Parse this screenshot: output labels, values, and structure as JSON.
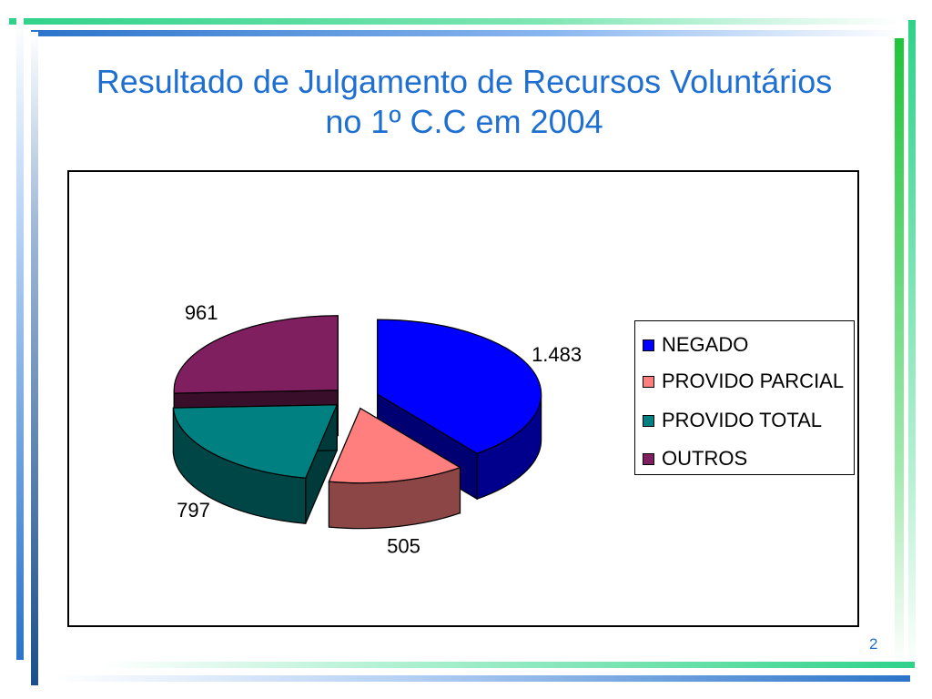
{
  "slide": {
    "title_line1": "Resultado de Julgamento de Recursos Voluntários",
    "title_line2": "no 1º C.C em 2004",
    "page_number": "2"
  },
  "chart_data": {
    "type": "pie",
    "style": "3d-exploded",
    "categories": [
      "NEGADO",
      "PROVIDO PARCIAL",
      "PROVIDO TOTAL",
      "OUTROS"
    ],
    "values": [
      1483,
      505,
      797,
      961
    ],
    "data_labels": [
      "1.483",
      "505",
      "797",
      "961"
    ],
    "colors": [
      "#0000ff",
      "#ff7f7f",
      "#008080",
      "#7f1f5f"
    ],
    "legend": "right"
  }
}
